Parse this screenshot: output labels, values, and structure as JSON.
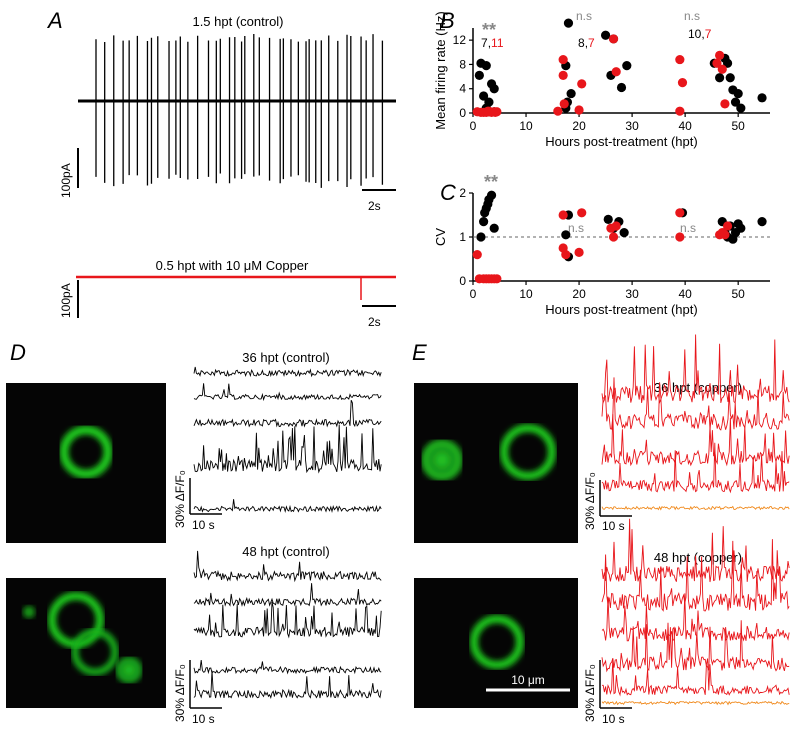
{
  "colors": {
    "control": "#000000",
    "copper": "#e8161b",
    "copper_baseline": "#f08a1d",
    "gfp_green": "#19c21a",
    "ns_gray": "#888888"
  },
  "panels": {
    "A": {
      "letter": "A",
      "top_title": "1.5 hpt (control)",
      "bottom_title": "0.5 hpt with 10 μM Copper",
      "scale_y_top": "100pA",
      "scale_y_bottom": "100pA",
      "scale_x_top": "2s",
      "scale_x_bottom": "2s"
    },
    "B": {
      "letter": "B",
      "stars": "**",
      "ns_labels": [
        "n.s",
        "n.s"
      ],
      "counts": [
        {
          "black": "7",
          "sep": ",",
          "red": "11"
        },
        {
          "black": "8",
          "sep": ",",
          "red": "7"
        },
        {
          "black": "10",
          "sep": ",",
          "red": "7"
        }
      ]
    },
    "C": {
      "letter": "C",
      "stars": "**",
      "ns_labels": [
        "n.s",
        "n.s"
      ]
    },
    "D": {
      "letter": "D",
      "title_top": "36 hpt (control)",
      "title_bottom": "48 hpt (control)",
      "scale_y": "30% ΔF/F₀",
      "scale_x": "10 s"
    },
    "E": {
      "letter": "E",
      "title_top": "36 hpt (copper)",
      "title_bottom": "48 hpt (copper)",
      "scale_y": "30% ΔF/F₀",
      "scale_x": "10 s",
      "image_scale": "10 μm"
    }
  },
  "chart_data": [
    {
      "type": "scatter",
      "panel": "B",
      "xlabel": "Hours post-treatment (hpt)",
      "ylabel": "Mean firing rate (Hz)",
      "xlim": [
        0,
        56
      ],
      "ylim": [
        0,
        14
      ],
      "xticks": [
        0,
        10,
        20,
        30,
        40,
        50
      ],
      "yticks": [
        0,
        4,
        8,
        12
      ],
      "series": [
        {
          "color": "black",
          "points": [
            [
              1.5,
              8.2
            ],
            [
              2.5,
              7.8
            ],
            [
              1.2,
              6.2
            ],
            [
              2.0,
              2.8
            ],
            [
              3.0,
              1.8
            ],
            [
              3.5,
              4.8
            ],
            [
              4.0,
              4.0
            ],
            [
              2.5,
              0.8
            ],
            [
              3.0,
              0.2
            ],
            [
              4.0,
              0.2
            ],
            [
              17.5,
              7.8
            ],
            [
              18.0,
              14.8
            ],
            [
              18.5,
              3.2
            ],
            [
              17.8,
              1.8
            ],
            [
              17.5,
              0.8
            ],
            [
              25.0,
              12.8
            ],
            [
              26.0,
              6.2
            ],
            [
              26.5,
              12.2
            ],
            [
              28.0,
              4.2
            ],
            [
              29.0,
              7.8
            ],
            [
              45.5,
              8.2
            ],
            [
              46.5,
              5.8
            ],
            [
              47.5,
              9.0
            ],
            [
              48.0,
              8.2
            ],
            [
              48.5,
              5.8
            ],
            [
              49.0,
              3.8
            ],
            [
              49.5,
              1.8
            ],
            [
              50.5,
              0.8
            ],
            [
              50.0,
              3.2
            ],
            [
              54.5,
              2.5
            ]
          ]
        },
        {
          "color": "red",
          "points": [
            [
              0.8,
              0.2
            ],
            [
              1.5,
              0.1
            ],
            [
              2.5,
              0.1
            ],
            [
              3.0,
              0.3
            ],
            [
              3.5,
              0.1
            ],
            [
              4.0,
              0.2
            ],
            [
              4.5,
              0.2
            ],
            [
              2.0,
              0.1
            ],
            [
              3.2,
              0.2
            ],
            [
              2.8,
              0.3
            ],
            [
              4.2,
              0.1
            ],
            [
              17.0,
              8.8
            ],
            [
              17.0,
              6.2
            ],
            [
              17.2,
              1.5
            ],
            [
              16.0,
              0.3
            ],
            [
              20.5,
              4.8
            ],
            [
              20.0,
              0.5
            ],
            [
              26.5,
              12.2
            ],
            [
              27.0,
              6.8
            ],
            [
              39.0,
              8.8
            ],
            [
              39.5,
              5.0
            ],
            [
              39.0,
              0.3
            ],
            [
              46.0,
              8.2
            ],
            [
              46.5,
              9.5
            ],
            [
              47.0,
              7.2
            ],
            [
              47.5,
              1.5
            ]
          ]
        }
      ]
    },
    {
      "type": "scatter",
      "panel": "C",
      "xlabel": "Hours post-treatment (hpt)",
      "ylabel": "CV",
      "xlim": [
        0,
        56
      ],
      "ylim": [
        0,
        2
      ],
      "xticks": [
        0,
        10,
        20,
        30,
        40,
        50
      ],
      "yticks": [
        0,
        1,
        2
      ],
      "reference_line_y": 1,
      "series": [
        {
          "color": "black",
          "points": [
            [
              1.5,
              1.0
            ],
            [
              2.0,
              1.35
            ],
            [
              2.5,
              1.65
            ],
            [
              3.0,
              1.85
            ],
            [
              3.5,
              1.95
            ],
            [
              2.8,
              1.75
            ],
            [
              4.0,
              1.2
            ],
            [
              2.2,
              1.55
            ],
            [
              17.5,
              1.05
            ],
            [
              18.0,
              1.5
            ],
            [
              18.0,
              0.55
            ],
            [
              25.5,
              1.4
            ],
            [
              26.5,
              1.2
            ],
            [
              27.5,
              1.35
            ],
            [
              28.5,
              1.1
            ],
            [
              39.5,
              1.55
            ],
            [
              47.0,
              1.35
            ],
            [
              47.5,
              1.1
            ],
            [
              48.0,
              1.0
            ],
            [
              48.5,
              1.25
            ],
            [
              49.0,
              0.95
            ],
            [
              49.5,
              1.1
            ],
            [
              50.0,
              1.3
            ],
            [
              50.5,
              1.2
            ],
            [
              54.5,
              1.35
            ]
          ]
        },
        {
          "color": "red",
          "points": [
            [
              0.8,
              0.6
            ],
            [
              1.2,
              0.05
            ],
            [
              2.0,
              0.05
            ],
            [
              2.5,
              0.05
            ],
            [
              3.0,
              0.05
            ],
            [
              3.5,
              0.05
            ],
            [
              4.0,
              0.05
            ],
            [
              4.5,
              0.05
            ],
            [
              17.0,
              1.5
            ],
            [
              17.0,
              0.75
            ],
            [
              17.5,
              0.6
            ],
            [
              20.5,
              1.55
            ],
            [
              20.0,
              0.65
            ],
            [
              26.0,
              1.2
            ],
            [
              26.5,
              1.0
            ],
            [
              27.0,
              1.25
            ],
            [
              39.0,
              1.55
            ],
            [
              39.0,
              1.0
            ],
            [
              46.5,
              1.05
            ],
            [
              47.0,
              1.1
            ],
            [
              47.5,
              1.05
            ],
            [
              48.0,
              1.25
            ]
          ]
        }
      ]
    }
  ]
}
